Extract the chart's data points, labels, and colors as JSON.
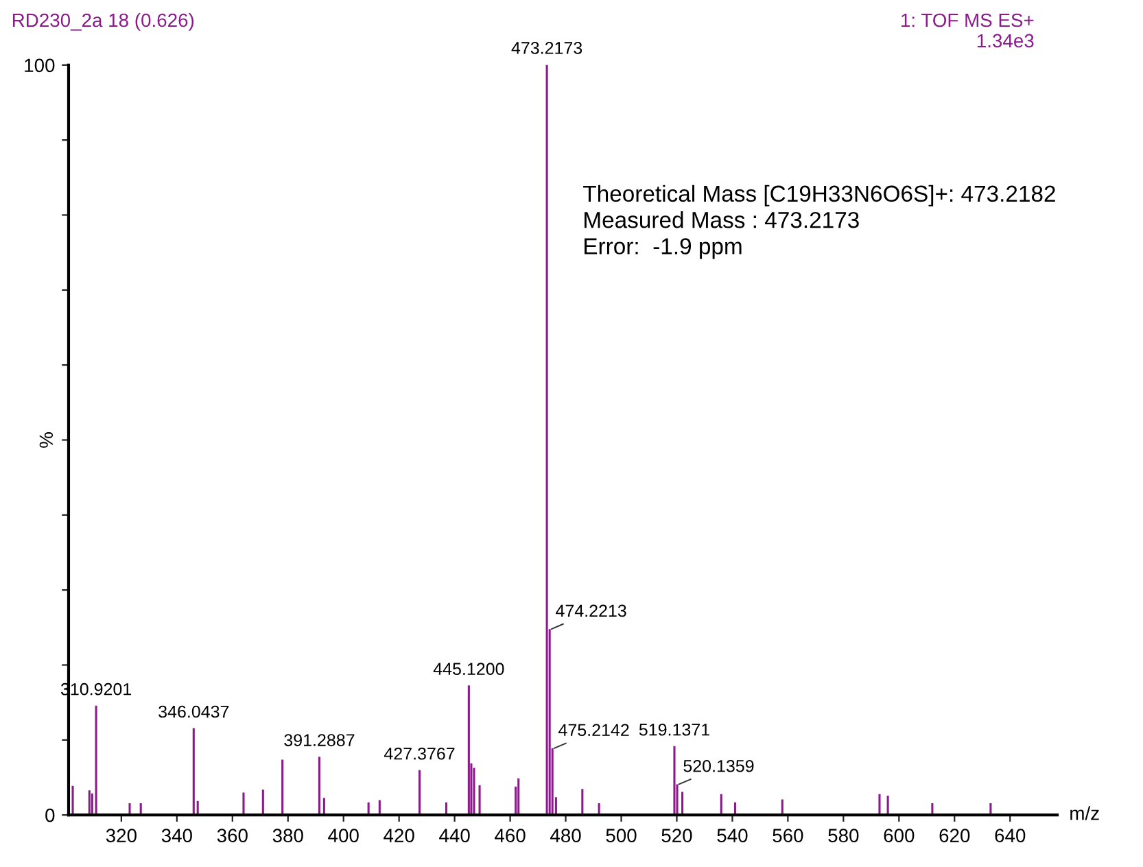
{
  "chart_data": {
    "type": "bar",
    "title": "RD230_2a 18 (0.626)",
    "subtitle": "1: TOF MS ES+\n1.34e3",
    "xlabel": "m/z",
    "ylabel": "%",
    "x": [
      302.5,
      308.5,
      309.5,
      310.9201,
      323,
      327,
      346.0437,
      347.5,
      364,
      371,
      378,
      391.2887,
      393,
      409,
      413,
      427.3767,
      437,
      445.12,
      446,
      447,
      449,
      462,
      463,
      473.2173,
      474.2213,
      475.2142,
      476.5,
      486,
      492,
      519.1371,
      520.1359,
      522,
      536,
      541,
      558,
      593,
      596,
      612,
      633
    ],
    "series": [
      {
        "color": "#8b1a8b",
        "values": [
          3.8,
          3.2,
          2.8,
          14.5,
          1.5,
          1.5,
          11.5,
          1.8,
          2.9,
          3.3,
          7.3,
          7.7,
          2.2,
          1.6,
          1.9,
          5.9,
          1.6,
          17.2,
          6.8,
          6.2,
          3.9,
          3.7,
          4.8,
          100,
          24.7,
          8.8,
          2.3,
          3.4,
          1.5,
          9.1,
          4.0,
          3.0,
          2.7,
          1.6,
          2.0,
          2.7,
          2.5,
          1.5,
          1.5
        ]
      }
    ],
    "xlim": [
      301,
      657
    ],
    "ylim": [
      0,
      100
    ],
    "xticks": [
      320,
      340,
      360,
      380,
      400,
      420,
      440,
      460,
      480,
      500,
      520,
      540,
      560,
      580,
      600,
      620,
      640
    ],
    "yticks": [
      0,
      {
        "value": 10,
        "label": null
      },
      {
        "value": 20,
        "label": null
      },
      {
        "value": 30,
        "label": null
      },
      {
        "value": 40,
        "label": null
      },
      {
        "value": 50,
        "label": null
      },
      {
        "value": 60,
        "label": null
      },
      {
        "value": 70,
        "label": null
      },
      {
        "value": 80,
        "label": null
      },
      {
        "value": 90,
        "label": null
      },
      100
    ],
    "grid": false,
    "annotations": [
      {
        "text": "310.9201",
        "x": 310.9201,
        "y": 14.5
      },
      {
        "text": "346.0437",
        "x": 346.0437,
        "y": 11.5
      },
      {
        "text": "391.2887",
        "x": 391.2887,
        "y": 7.7
      },
      {
        "text": "427.3767",
        "x": 427.3767,
        "y": 5.9
      },
      {
        "text": "445.1200",
        "x": 445.12,
        "y": 17.2
      },
      {
        "text": "473.2173",
        "x": 473.2173,
        "y": 100
      },
      {
        "text": "474.2213",
        "x": 474.2213,
        "y": 24.7
      },
      {
        "text": "475.2142",
        "x": 475.2142,
        "y": 8.8
      },
      {
        "text": "519.1371",
        "x": 519.1371,
        "y": 9.1
      },
      {
        "text": "520.1359",
        "x": 520.1359,
        "y": 4.0
      },
      "Theoretical Mass [C19H33N6O6S]+: 473.2182\nMeasured Mass : 473.2173\nError:  -1.9 ppm"
    ]
  }
}
